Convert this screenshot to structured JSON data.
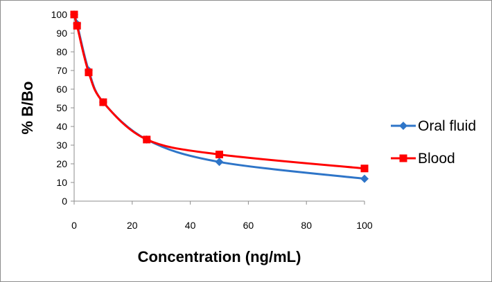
{
  "chart_data": {
    "type": "line",
    "title": "",
    "xlabel": "Concentration (ng/mL)",
    "ylabel": "% B/Bo",
    "xlim": [
      0,
      100
    ],
    "ylim": [
      0,
      100
    ],
    "x_ticks": [
      0,
      20,
      40,
      60,
      80,
      100
    ],
    "y_ticks": [
      0,
      10,
      20,
      30,
      40,
      50,
      60,
      70,
      80,
      90,
      100
    ],
    "grid": false,
    "legend_position": "right",
    "series": [
      {
        "name": "Oral fluid",
        "color": "#2E75C8",
        "marker": "diamond",
        "x": [
          0,
          1,
          5,
          10,
          25,
          50,
          100
        ],
        "y": [
          100,
          95,
          70,
          53,
          33,
          21,
          12
        ]
      },
      {
        "name": "Blood",
        "color": "#FF0000",
        "marker": "square",
        "x": [
          0,
          1,
          5,
          10,
          25,
          50,
          100
        ],
        "y": [
          100,
          94,
          69,
          53,
          33,
          25,
          17.5
        ]
      }
    ]
  }
}
